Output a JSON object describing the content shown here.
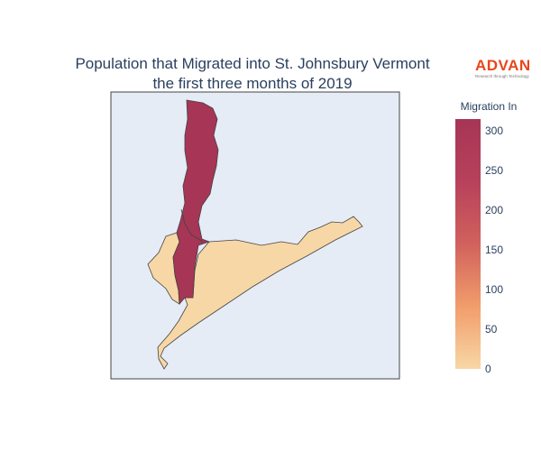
{
  "title": {
    "line1": "Population that Migrated into St. Johnsbury Vermont",
    "line2": "the first three months of 2019"
  },
  "logo": {
    "name": "ADVAN",
    "tagline": "Research through Technology",
    "color": "#e8471c"
  },
  "map": {
    "background": "#e5ecf6",
    "border_color": "#444444",
    "regions": [
      {
        "name": "region-north",
        "migration_in": 315
      },
      {
        "name": "region-east",
        "migration_in": 0
      },
      {
        "name": "region-west",
        "migration_in": 0
      }
    ]
  },
  "colorbar": {
    "title": "Migration In",
    "min": 0,
    "max": 315,
    "ticks": [
      0,
      50,
      100,
      150,
      200,
      250,
      300
    ],
    "colors": [
      "#f8d7a6",
      "#f19d6b",
      "#d1615d",
      "#b7415b",
      "#a63556"
    ]
  }
}
